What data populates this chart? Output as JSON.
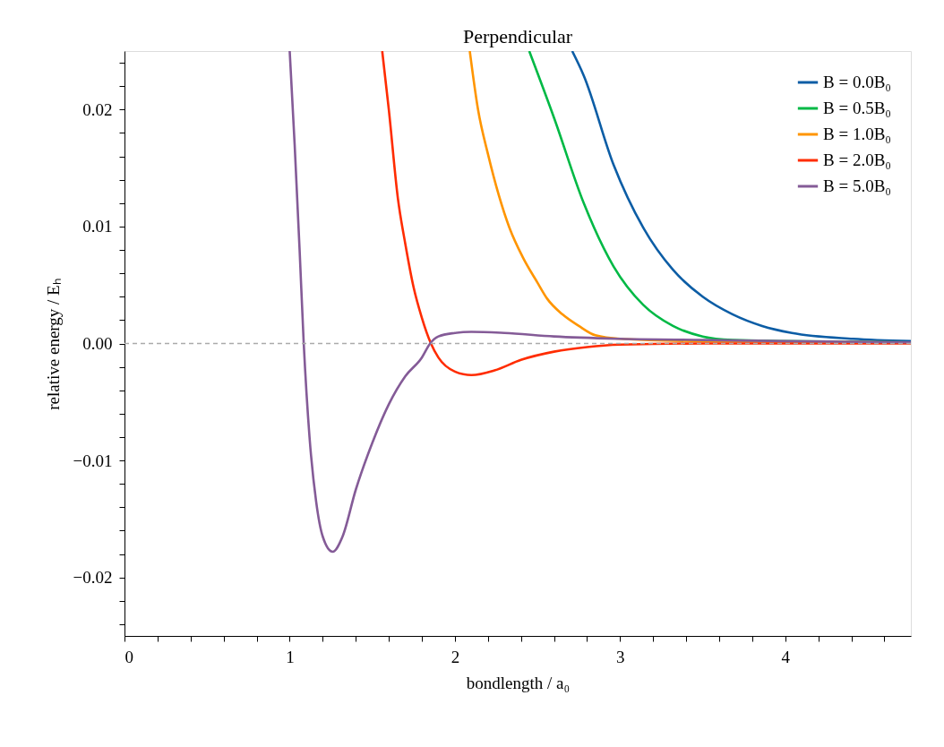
{
  "chart_data": {
    "type": "line",
    "title": "Perpendicular",
    "xlabel": "bondlength / a₀",
    "ylabel": "relative energy / Eₕ",
    "xlim": [
      0,
      4.76
    ],
    "ylim": [
      -0.025,
      0.025
    ],
    "xticks": [
      0,
      {
        "value": 0.2,
        "label": null
      },
      {
        "value": 0.4,
        "label": null
      },
      {
        "value": 0.6,
        "label": null
      },
      {
        "value": 0.8,
        "label": null
      },
      1,
      {
        "value": 1.2,
        "label": null
      },
      {
        "value": 1.4,
        "label": null
      },
      {
        "value": 1.6,
        "label": null
      },
      {
        "value": 1.8,
        "label": null
      },
      2,
      {
        "value": 2.2,
        "label": null
      },
      {
        "value": 2.4,
        "label": null
      },
      {
        "value": 2.6,
        "label": null
      },
      {
        "value": 2.8,
        "label": null
      },
      3,
      {
        "value": 3.2,
        "label": null
      },
      {
        "value": 3.4,
        "label": null
      },
      {
        "value": 3.6,
        "label": null
      },
      {
        "value": 3.8,
        "label": null
      },
      4,
      {
        "value": 4.2,
        "label": null
      },
      {
        "value": 4.4,
        "label": null
      },
      {
        "value": 4.6,
        "label": null
      }
    ],
    "yticks": [
      {
        "value": -0.024,
        "label": null
      },
      {
        "value": -0.022,
        "label": null
      },
      {
        "value": -0.02,
        "label": "−0.02"
      },
      {
        "value": -0.018,
        "label": null
      },
      {
        "value": -0.016,
        "label": null
      },
      {
        "value": -0.014,
        "label": null
      },
      {
        "value": -0.012,
        "label": null
      },
      {
        "value": -0.01,
        "label": "−0.01"
      },
      {
        "value": -0.008,
        "label": null
      },
      {
        "value": -0.006,
        "label": null
      },
      {
        "value": -0.004,
        "label": null
      },
      {
        "value": -0.002,
        "label": null
      },
      {
        "value": 0,
        "label": "0.00"
      },
      {
        "value": 0.002,
        "label": null
      },
      {
        "value": 0.004,
        "label": null
      },
      {
        "value": 0.006,
        "label": null
      },
      {
        "value": 0.008,
        "label": null
      },
      {
        "value": 0.01,
        "label": "0.01"
      },
      {
        "value": 0.012,
        "label": null
      },
      {
        "value": 0.014,
        "label": null
      },
      {
        "value": 0.016,
        "label": null
      },
      {
        "value": 0.018,
        "label": null
      },
      {
        "value": 0.02,
        "label": "0.02"
      },
      {
        "value": 0.022,
        "label": null
      },
      {
        "value": 0.024,
        "label": null
      }
    ],
    "grid": false,
    "legend": "top right",
    "marker": "none",
    "line_style": "solid",
    "ref_lines": [
      {
        "axis": "y",
        "value": 0,
        "color": "#aaaaaa",
        "line_style": "dashed"
      }
    ],
    "series": [
      {
        "name": "B = 0.0B₀",
        "color": "#0c5da5",
        "x": [
          2.71,
          2.78,
          2.96,
          3.14,
          3.32,
          3.5,
          3.68,
          3.86,
          4.04,
          4.41,
          4.76
        ],
        "values": [
          0.025,
          0.0229,
          0.0153,
          0.0099,
          0.0063,
          0.004,
          0.0025,
          0.0015,
          0.0009,
          0.0004,
          0.0002
        ]
      },
      {
        "name": "B = 0.5B₀",
        "color": "#00b945",
        "x": [
          2.45,
          2.6,
          2.78,
          2.96,
          3.14,
          3.32,
          3.5,
          3.68,
          4.0,
          4.76
        ],
        "values": [
          0.025,
          0.0193,
          0.012,
          0.0066,
          0.0033,
          0.0015,
          0.0006,
          0.0003,
          0.0002,
          0.0001
        ]
      },
      {
        "name": "B = 1.0B₀",
        "color": "#ff9500",
        "x": [
          2.09,
          2.14,
          2.2,
          2.33,
          2.41,
          2.5,
          2.56,
          2.65,
          2.75,
          2.85,
          3.0,
          3.5,
          4.76
        ],
        "values": [
          0.025,
          0.02,
          0.0162,
          0.0099,
          0.0074,
          0.0052,
          0.0038,
          0.0025,
          0.0015,
          0.0007,
          0.0004,
          0.0002,
          0.0001
        ]
      },
      {
        "name": "B = 2.0B₀",
        "color": "#ff2c00",
        "x": [
          1.56,
          1.6,
          1.655,
          1.7,
          1.75,
          1.8,
          1.855,
          1.9,
          2.0,
          2.1,
          2.24,
          2.4,
          2.6,
          2.8,
          3.0,
          3.5,
          4.76
        ],
        "values": [
          0.025,
          0.02,
          0.0124,
          0.0085,
          0.0048,
          0.0022,
          0.0,
          -0.0012,
          -0.0024,
          -0.0027,
          -0.0023,
          -0.0014,
          -0.0007,
          -0.0003,
          -0.0001,
          0.0,
          0.0
        ]
      },
      {
        "name": "B = 5.0B₀",
        "color": "#845b97",
        "x": [
          1.0,
          1.03,
          1.06,
          1.085,
          1.12,
          1.16,
          1.2,
          1.26,
          1.32,
          1.4,
          1.5,
          1.6,
          1.7,
          1.8,
          1.85,
          1.9,
          2.0,
          2.1,
          2.3,
          2.6,
          3.0,
          3.5,
          4.0,
          4.76
        ],
        "values": [
          0.025,
          0.017,
          0.008,
          0.0,
          -0.008,
          -0.0135,
          -0.0165,
          -0.0178,
          -0.0165,
          -0.0125,
          -0.0085,
          -0.0052,
          -0.0028,
          -0.0012,
          0.0,
          0.0006,
          0.0009,
          0.001,
          0.0009,
          0.0006,
          0.0004,
          0.0003,
          0.0002,
          0.0001
        ]
      }
    ]
  }
}
